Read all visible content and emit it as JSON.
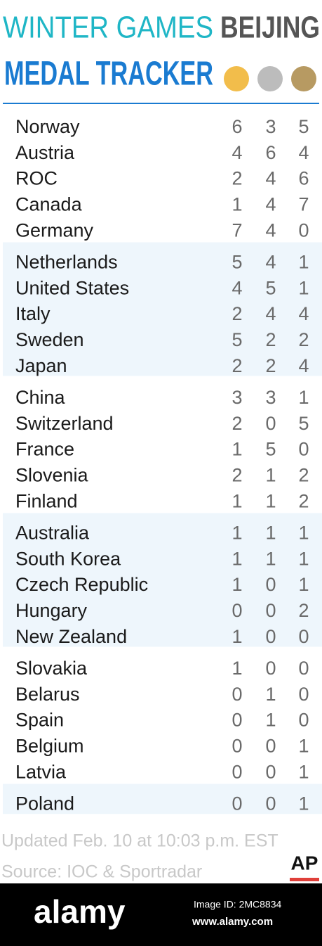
{
  "header": {
    "title_left": "WINTER GAMES",
    "title_right": "BEIJING",
    "subtitle": "MEDAL TRACKER"
  },
  "table": {
    "rows": [
      [
        "Norway",
        6,
        3,
        5
      ],
      [
        "Austria",
        4,
        6,
        4
      ],
      [
        "ROC",
        2,
        4,
        6
      ],
      [
        "Canada",
        1,
        4,
        7
      ],
      [
        "Germany",
        7,
        4,
        0
      ],
      [
        "Netherlands",
        5,
        4,
        1
      ],
      [
        "United States",
        4,
        5,
        1
      ],
      [
        "Italy",
        2,
        4,
        4
      ],
      [
        "Sweden",
        5,
        2,
        2
      ],
      [
        "Japan",
        2,
        2,
        4
      ],
      [
        "China",
        3,
        3,
        1
      ],
      [
        "Switzerland",
        2,
        0,
        5
      ],
      [
        "France",
        1,
        5,
        0
      ],
      [
        "Slovenia",
        2,
        1,
        2
      ],
      [
        "Finland",
        1,
        1,
        2
      ],
      [
        "Australia",
        1,
        1,
        1
      ],
      [
        "South Korea",
        1,
        1,
        1
      ],
      [
        "Czech Republic",
        1,
        0,
        1
      ],
      [
        "Hungary",
        0,
        0,
        2
      ],
      [
        "New Zealand",
        1,
        0,
        0
      ],
      [
        "Slovakia",
        1,
        0,
        0
      ],
      [
        "Belarus",
        0,
        1,
        0
      ],
      [
        "Spain",
        0,
        1,
        0
      ],
      [
        "Belgium",
        0,
        0,
        1
      ],
      [
        "Latvia",
        0,
        0,
        1
      ],
      [
        "Poland",
        0,
        0,
        1
      ]
    ]
  },
  "footer": {
    "updated": "Updated Feb. 10 at 10:03 p.m. EST",
    "source": "Source: IOC & Sportradar",
    "logo": "AP"
  },
  "watermark": {
    "brand": "alamy",
    "image_id": "Image ID: 2MC8834",
    "url": "www.alamy.com"
  }
}
